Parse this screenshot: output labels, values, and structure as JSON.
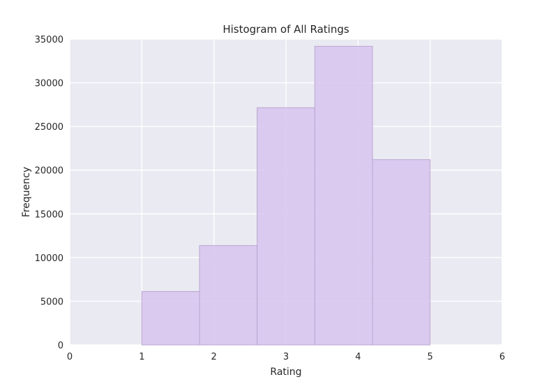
{
  "chart_data": {
    "type": "bar",
    "title": "Histogram of All Ratings",
    "xlabel": "Rating",
    "ylabel": "Frequency",
    "xlim": [
      0,
      6
    ],
    "ylim": [
      0,
      35000
    ],
    "xticks": [
      0,
      1,
      2,
      3,
      4,
      5,
      6
    ],
    "yticks": [
      0,
      5000,
      10000,
      15000,
      20000,
      25000,
      30000,
      35000
    ],
    "grid": true,
    "colors": {
      "background": "#eaeaf2",
      "grid": "#ffffff",
      "bar_fill": "#d9c6ef",
      "bar_stroke": "#b9a6cf"
    },
    "bins": [
      {
        "x0": 1.0,
        "x1": 1.8,
        "value": 6110
      },
      {
        "x0": 1.8,
        "x1": 2.6,
        "value": 11370
      },
      {
        "x0": 2.6,
        "x1": 3.4,
        "value": 27145
      },
      {
        "x0": 3.4,
        "x1": 4.2,
        "value": 34174
      },
      {
        "x0": 4.2,
        "x1": 5.0,
        "value": 21201
      }
    ]
  }
}
